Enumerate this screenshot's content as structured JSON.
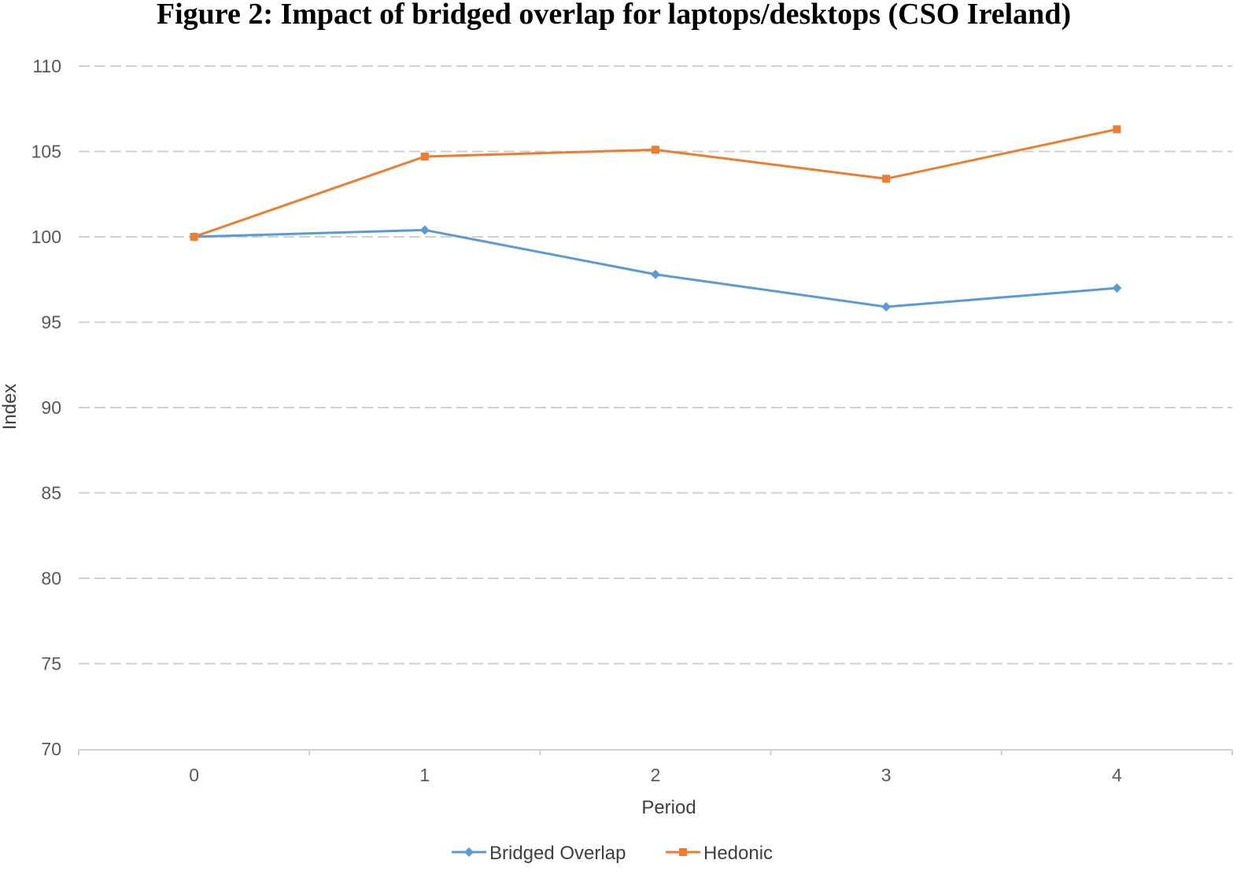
{
  "chart_data": {
    "type": "line",
    "title": "Figure 2: Impact of bridged overlap for laptops/desktops (CSO Ireland)",
    "xlabel": "Period",
    "ylabel": "Index",
    "categories": [
      "0",
      "1",
      "2",
      "3",
      "4"
    ],
    "ylim": [
      70,
      110
    ],
    "yticks": [
      70,
      75,
      80,
      85,
      90,
      95,
      100,
      105,
      110
    ],
    "grid": true,
    "legend": "bottom",
    "series": [
      {
        "name": "Bridged Overlap",
        "color": "#5B9BD5",
        "marker": "diamond",
        "values": [
          100,
          100.4,
          97.8,
          95.9,
          97.0
        ]
      },
      {
        "name": "Hedonic",
        "color": "#ED7D31",
        "marker": "square",
        "values": [
          100,
          104.7,
          105.1,
          103.4,
          106.3
        ]
      }
    ]
  }
}
